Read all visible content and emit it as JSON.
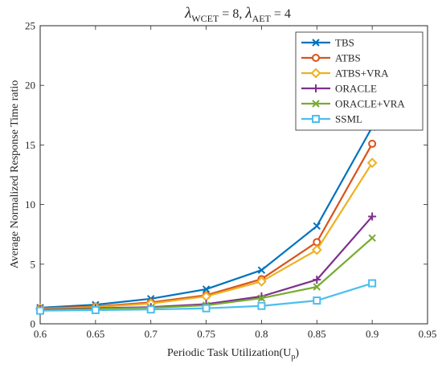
{
  "chart_data": {
    "type": "line",
    "title": {
      "lambda": "λ",
      "sub1": "WCET",
      "part1": " = 8, ",
      "sub2": "AET",
      "part2": " = 4"
    },
    "xlabel": {
      "text": "Periodic Task Utilization(U",
      "sub": "p",
      "end": ")"
    },
    "ylabel": "Average Normalized Response Time ratio",
    "xlim": [
      0.6,
      0.95
    ],
    "ylim": [
      0,
      25
    ],
    "xticks": [
      0.6,
      0.65,
      0.7,
      0.75,
      0.8,
      0.85,
      0.9,
      0.95
    ],
    "xtick_labels": [
      "0.6",
      "0.65",
      "0.7",
      "0.75",
      "0.8",
      "0.85",
      "0.9",
      "0.95"
    ],
    "yticks": [
      0,
      5,
      10,
      15,
      20,
      25
    ],
    "ytick_labels": [
      "0",
      "5",
      "10",
      "15",
      "20",
      "25"
    ],
    "grid": false,
    "legend_position": "top-right",
    "x": [
      0.6,
      0.65,
      0.7,
      0.75,
      0.8,
      0.85,
      0.9
    ],
    "series": [
      {
        "name": "TBS",
        "color": "#0072BD",
        "marker": "x",
        "values": [
          1.35,
          1.6,
          2.1,
          2.9,
          4.5,
          8.2,
          16.5
        ]
      },
      {
        "name": "ATBS",
        "color": "#D95319",
        "marker": "circle",
        "values": [
          1.3,
          1.45,
          1.8,
          2.4,
          3.75,
          6.85,
          15.1
        ]
      },
      {
        "name": "ATBS+VRA",
        "color": "#EDB120",
        "marker": "diamond",
        "values": [
          1.25,
          1.4,
          1.7,
          2.3,
          3.55,
          6.2,
          13.5
        ]
      },
      {
        "name": "ORACLE",
        "color": "#7E2F8E",
        "marker": "plus",
        "values": [
          1.2,
          1.3,
          1.4,
          1.65,
          2.3,
          3.7,
          9.0
        ]
      },
      {
        "name": "ORACLE+VRA",
        "color": "#77AC30",
        "marker": "x",
        "values": [
          1.15,
          1.25,
          1.35,
          1.55,
          2.15,
          3.1,
          7.2
        ]
      },
      {
        "name": "SSML",
        "color": "#4DBEEE",
        "marker": "square",
        "values": [
          1.1,
          1.15,
          1.2,
          1.3,
          1.5,
          1.95,
          3.4
        ]
      }
    ]
  }
}
